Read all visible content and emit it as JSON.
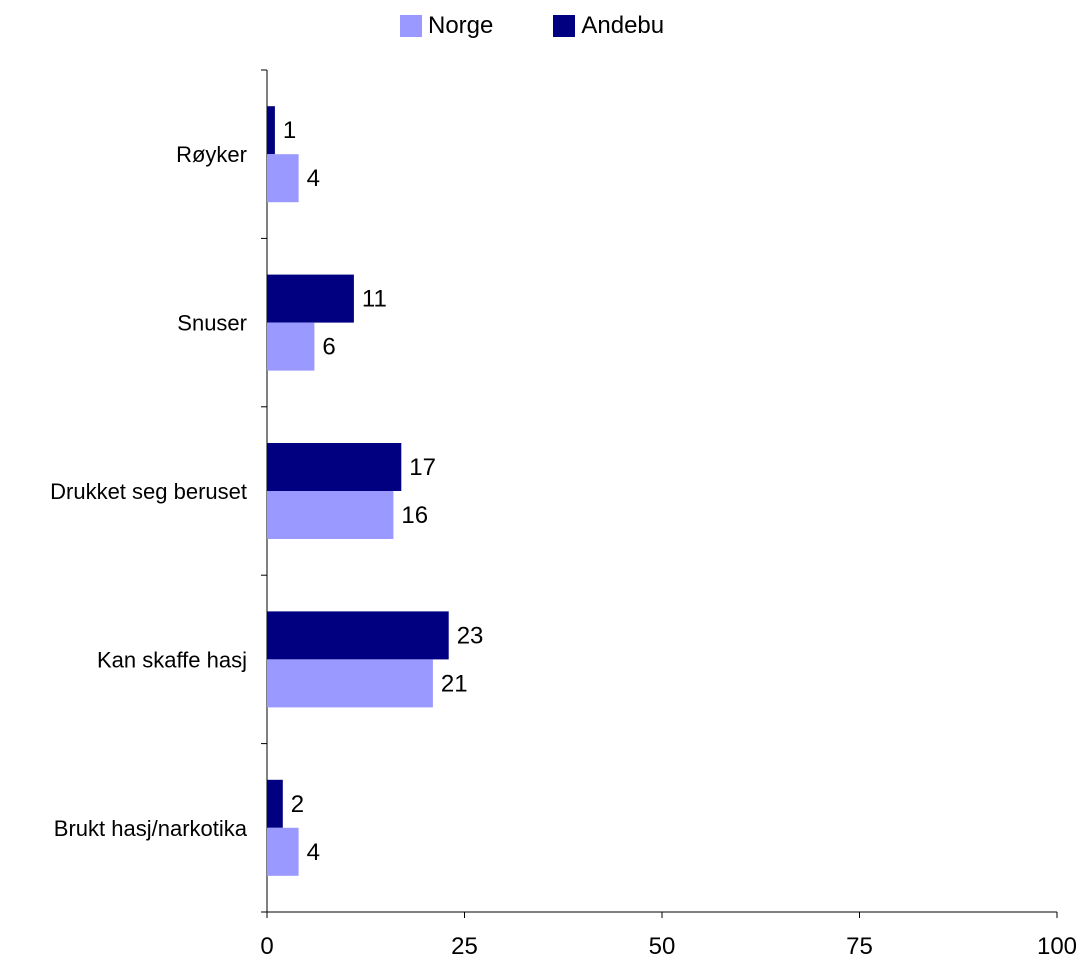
{
  "chart_data": {
    "type": "bar",
    "orientation": "horizontal",
    "categories": [
      "Røyker",
      "Snuser",
      "Drukket seg beruset",
      "Kan skaffe hasj",
      "Brukt hasj/narkotika"
    ],
    "series": [
      {
        "name": "Andebu",
        "color": "#000080",
        "values": [
          1,
          11,
          17,
          23,
          2
        ]
      },
      {
        "name": "Norge",
        "color": "#9999FF",
        "values": [
          4,
          6,
          16,
          21,
          4
        ]
      }
    ],
    "xlim": [
      0,
      100
    ],
    "xticks": [
      0,
      25,
      50,
      75,
      100
    ],
    "grid": false,
    "legend": {
      "position": "top-center",
      "order": [
        "Norge",
        "Andebu"
      ]
    }
  }
}
